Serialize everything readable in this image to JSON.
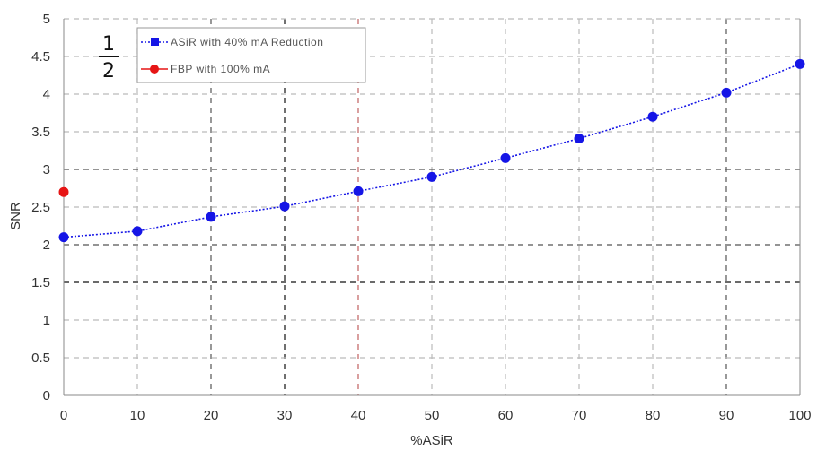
{
  "chart_data": {
    "type": "scatter",
    "xlabel": "%ASiR",
    "ylabel": "SNR",
    "xlim": [
      0,
      100
    ],
    "ylim": [
      0,
      5
    ],
    "x_ticks": [
      0,
      10,
      20,
      30,
      40,
      50,
      60,
      70,
      80,
      90,
      100
    ],
    "y_ticks": [
      0,
      0.5,
      1,
      1.5,
      2,
      2.5,
      3,
      3.5,
      4,
      4.5,
      5
    ],
    "x_tick_labels": [
      "0",
      "10",
      "20",
      "30",
      "40",
      "50",
      "60",
      "70",
      "80",
      "90",
      "100"
    ],
    "y_tick_labels": [
      "0",
      "0.5",
      "1",
      "1.5",
      "2",
      "2.5",
      "3",
      "3.5",
      "4",
      "4.5",
      "5"
    ],
    "grid": true,
    "legend_position": "top-left",
    "series": [
      {
        "name": "ASiR with 40% mA Reduction",
        "color": "#1515e6",
        "line": "dotted",
        "x": [
          0,
          10,
          20,
          30,
          40,
          50,
          60,
          70,
          80,
          90,
          100
        ],
        "y": [
          2.1,
          2.18,
          2.37,
          2.51,
          2.71,
          2.9,
          3.15,
          3.41,
          3.7,
          4.02,
          4.4
        ]
      },
      {
        "name": "FBP with 100% mA",
        "color": "#e61515",
        "line": "none",
        "x": [
          0
        ],
        "y": [
          2.7
        ]
      }
    ],
    "annotations": [
      {
        "text": "1",
        "position": "top-left"
      },
      {
        "text": "2",
        "position": "top-left"
      }
    ]
  }
}
